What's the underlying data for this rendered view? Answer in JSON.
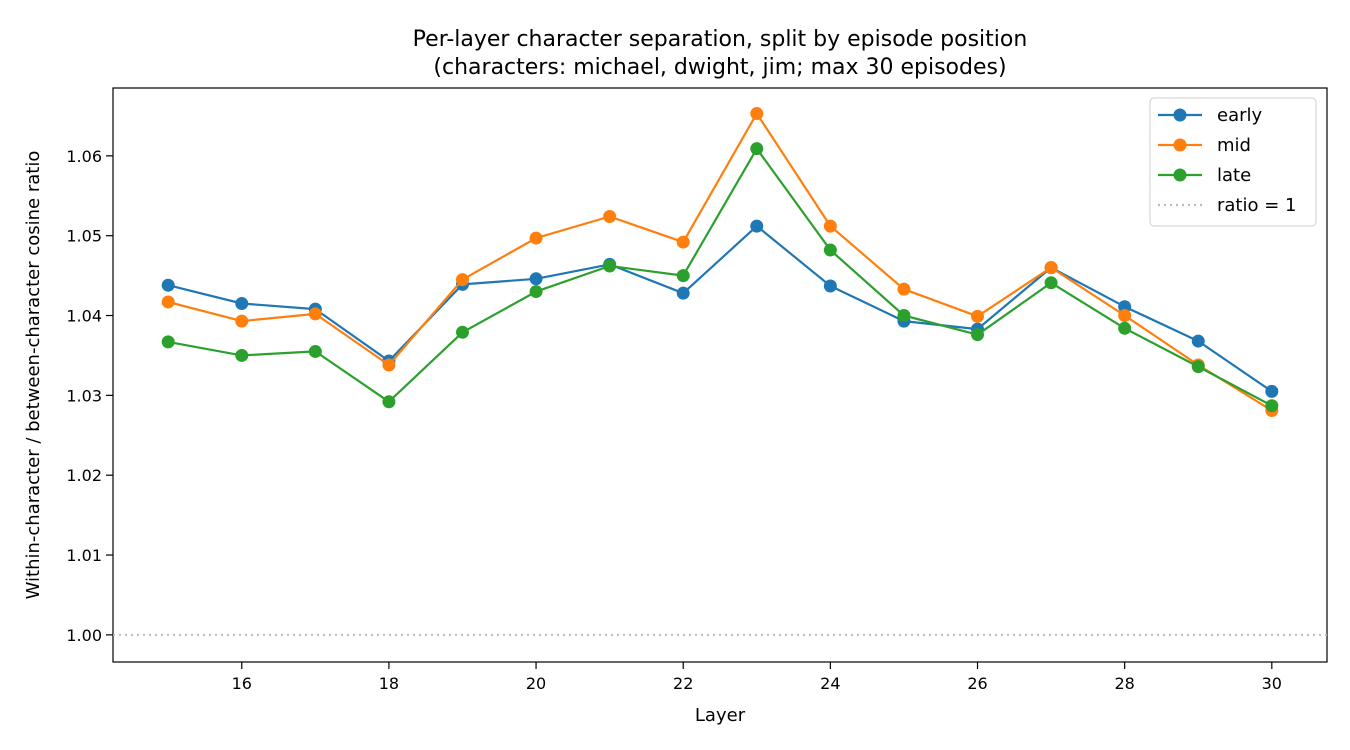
{
  "chart_data": {
    "type": "line",
    "title": "Per-layer character separation, split by episode position",
    "subtitle": "(characters: michael, dwight, jim; max 30 episodes)",
    "xlabel": "Layer",
    "ylabel": "Within-character / between-character cosine ratio",
    "xlim": [
      14.25,
      30.75
    ],
    "ylim": [
      0.9966,
      1.0685
    ],
    "xticks": [
      16,
      18,
      20,
      22,
      24,
      26,
      28,
      30
    ],
    "yticks": [
      1.0,
      1.01,
      1.02,
      1.03,
      1.04,
      1.05,
      1.06
    ],
    "ytick_labels": [
      "1.00",
      "1.01",
      "1.02",
      "1.03",
      "1.04",
      "1.05",
      "1.06"
    ],
    "grid": false,
    "legend_position": "top-right",
    "x": [
      15,
      16,
      17,
      18,
      19,
      20,
      21,
      22,
      23,
      24,
      25,
      26,
      27,
      28,
      29,
      30
    ],
    "series": [
      {
        "name": "early",
        "color": "#1f77b4",
        "values": [
          1.0438,
          1.0415,
          1.0408,
          1.0343,
          1.0439,
          1.0446,
          1.0464,
          1.0428,
          1.0512,
          1.0437,
          1.0393,
          1.0383,
          1.046,
          1.0411,
          1.0368,
          1.0305
        ]
      },
      {
        "name": "mid",
        "color": "#ff7f0e",
        "values": [
          1.0417,
          1.0393,
          1.0402,
          1.0338,
          1.0445,
          1.0497,
          1.0524,
          1.0492,
          1.0653,
          1.0512,
          1.0433,
          1.0399,
          1.046,
          1.04,
          1.0338,
          1.0281
        ]
      },
      {
        "name": "late",
        "color": "#2ca02c",
        "values": [
          1.0367,
          1.035,
          1.0355,
          1.0292,
          1.0379,
          1.043,
          1.0462,
          1.045,
          1.0609,
          1.0482,
          1.04,
          1.0376,
          1.0441,
          1.0384,
          1.0336,
          1.0287
        ]
      }
    ],
    "reference_line": {
      "name": "ratio = 1",
      "y": 1.0,
      "color": "#bbbbbb",
      "style": "dotted"
    }
  }
}
